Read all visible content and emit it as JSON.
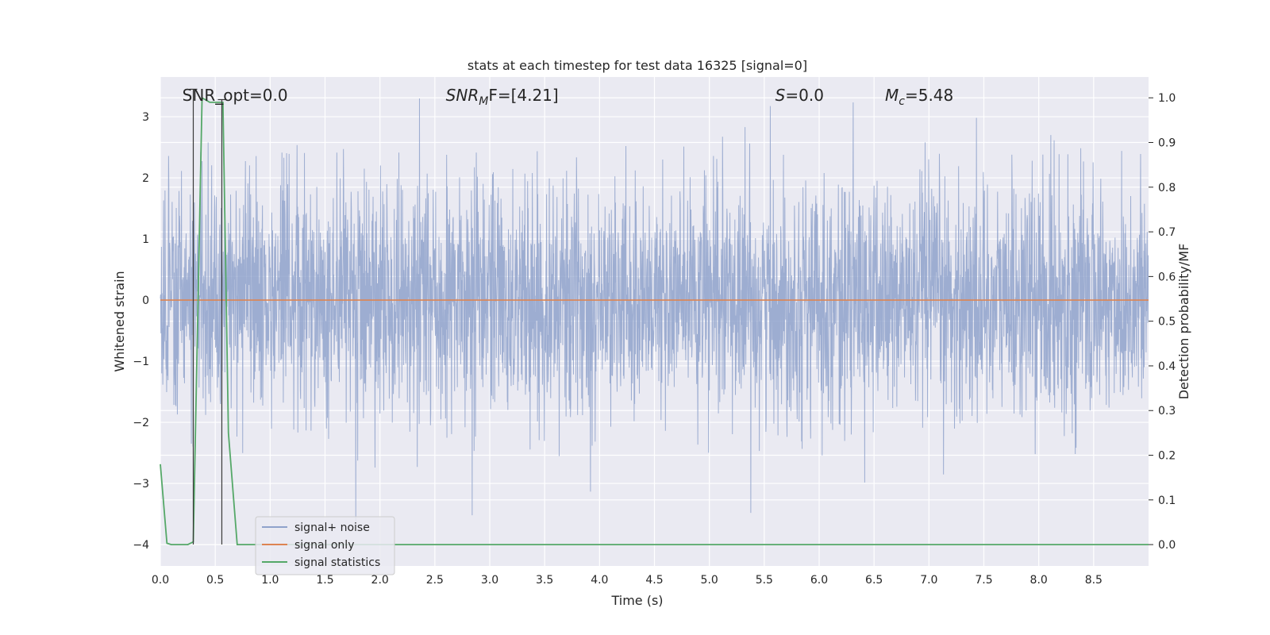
{
  "chart_data": {
    "type": "line",
    "title": "stats at each timestep for test data 16325 [signal=0]",
    "xlabel": "Time (s)",
    "ylabel_left": "Whitened strain",
    "ylabel_right": "Detection probability/MF",
    "xlim": [
      0.0,
      9.0
    ],
    "ylim_left": [
      -4.35,
      3.65
    ],
    "ylim_right": [
      -0.0478,
      1.0466
    ],
    "grid": true,
    "x_ticks": [
      0.0,
      0.5,
      1.0,
      1.5,
      2.0,
      2.5,
      3.0,
      3.5,
      4.0,
      4.5,
      5.0,
      5.5,
      6.0,
      6.5,
      7.0,
      7.5,
      8.0,
      8.5
    ],
    "x_tick_labels": [
      "0.0",
      "0.5",
      "1.0",
      "1.5",
      "2.0",
      "2.5",
      "3.0",
      "3.5",
      "4.0",
      "4.5",
      "5.0",
      "5.5",
      "6.0",
      "6.5",
      "7.0",
      "7.5",
      "8.0",
      "8.5"
    ],
    "y_left_ticks": [
      3,
      2,
      1,
      0,
      -1,
      -2,
      -3,
      -4
    ],
    "y_left_tick_labels": [
      "3",
      "2",
      "1",
      "0",
      "−1",
      "−2",
      "−3",
      "−4"
    ],
    "y_right_ticks": [
      1.0,
      0.9,
      0.8,
      0.7,
      0.6,
      0.5,
      0.4,
      0.3,
      0.2,
      0.1,
      0.0
    ],
    "y_right_tick_labels": [
      "1.0",
      "0.9",
      "0.8",
      "0.7",
      "0.6",
      "0.5",
      "0.4",
      "0.3",
      "0.2",
      "0.1",
      "0.0"
    ],
    "legend_position": "lower-left",
    "series": [
      {
        "name": "signal+ noise",
        "axis": "left",
        "color": "#8fa2cb",
        "description_range": [
          -4.0,
          3.3
        ],
        "style": "dense whitened noise"
      },
      {
        "name": "signal only",
        "axis": "left",
        "color": "#dd8452",
        "x": [
          0.0,
          9.0
        ],
        "y": [
          0.0,
          0.0
        ]
      },
      {
        "name": "signal statistics",
        "axis": "right",
        "color": "#55a868",
        "x": [
          0.0,
          0.06,
          0.1,
          0.15,
          0.25,
          0.3,
          0.38,
          0.45,
          0.5,
          0.55,
          0.57,
          0.62,
          0.7,
          9.0
        ],
        "y": [
          0.18,
          0.003,
          0.0,
          0.0,
          0.0,
          0.006,
          1.0,
          0.99,
          0.99,
          0.99,
          0.99,
          0.25,
          0.0,
          0.0
        ]
      }
    ],
    "vertical_markers": [
      {
        "x": 0.3,
        "y_left": [
          -4.0,
          3.45
        ],
        "color": "#3a3a3a"
      },
      {
        "x": 0.56,
        "y_left": [
          -4.0,
          3.28
        ],
        "color": "#3a3a3a"
      }
    ],
    "annotations": [
      {
        "text": "SNR_opt=0.0",
        "x": 0.2,
        "y": 3.35
      },
      {
        "text_main": "SNR",
        "text_sub": "M",
        "text_rest": "F=[4.21]",
        "x": 2.6,
        "y": 3.35
      },
      {
        "text_main": "S",
        "text_rest": "=0.0",
        "x": 5.6,
        "y": 3.35
      },
      {
        "text_main": "M",
        "text_sub": "c",
        "text_rest": "=5.48",
        "x": 6.6,
        "y": 3.35
      }
    ]
  }
}
